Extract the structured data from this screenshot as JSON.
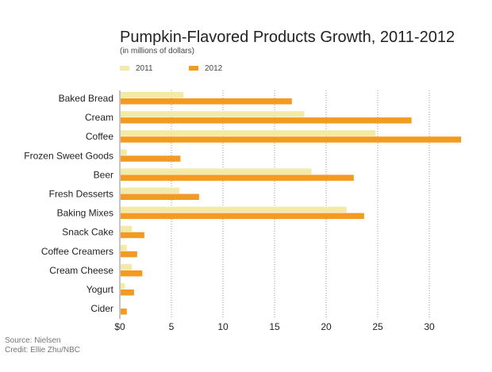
{
  "chart_data": {
    "type": "bar",
    "orientation": "horizontal",
    "title": "Pumpkin-Flavored Products Growth, 2011-2012",
    "subtitle": "(in millions of dollars)",
    "categories": [
      "Baked Bread",
      "Cream",
      "Coffee",
      "Frozen Sweet Goods",
      "Beer",
      "Fresh Desserts",
      "Baking Mixes",
      "Snack Cake",
      "Coffee Creamers",
      "Cream Cheese",
      "Yogurt",
      "Cider"
    ],
    "series": [
      {
        "name": "2011",
        "color": "#f3eaa7",
        "values": [
          6.1,
          17.8,
          24.7,
          0.6,
          18.5,
          5.7,
          21.9,
          1.1,
          0.6,
          1.1,
          0.4,
          0.0
        ]
      },
      {
        "name": "2012",
        "color": "#f29a22",
        "values": [
          16.6,
          28.2,
          33.0,
          5.8,
          22.6,
          7.6,
          23.6,
          2.3,
          1.6,
          2.1,
          1.3,
          0.6
        ]
      }
    ],
    "xticks": [
      0,
      5,
      10,
      15,
      20,
      25,
      30
    ],
    "xtick_labels": [
      "$0",
      "5",
      "10",
      "15",
      "20",
      "25",
      "30"
    ],
    "xlim": [
      0,
      33
    ],
    "grid": "vertical dotted",
    "legend": "top-left"
  },
  "footer": {
    "source": "Source: Nielsen",
    "credit": "Credit: Ellie Zhu/NBC"
  }
}
